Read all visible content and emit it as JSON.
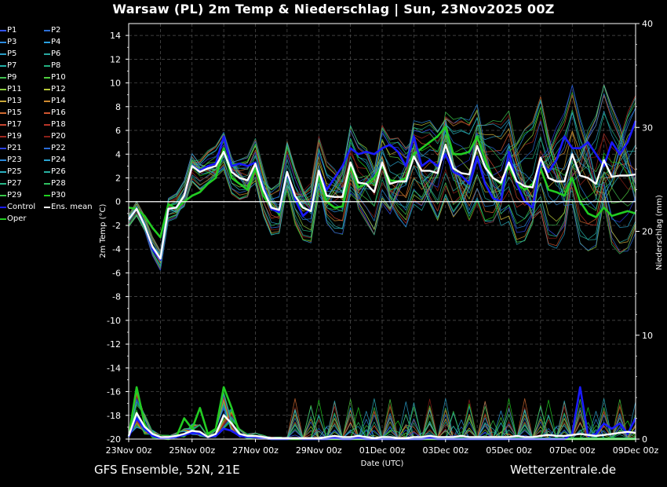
{
  "title": "Warsaw  (PL)  2m Temp & Niederschlag | Sun, 23Nov2025 00Z",
  "footer": {
    "left": "GFS Ensemble, 52N, 21E",
    "right": "Wetterzentrale.de"
  },
  "legend": [
    {
      "label": "P1",
      "color": "#3355ff"
    },
    {
      "label": "P2",
      "color": "#2d6fd6"
    },
    {
      "label": "P3",
      "color": "#2a8adf"
    },
    {
      "label": "P4",
      "color": "#2aa0e0"
    },
    {
      "label": "P5",
      "color": "#2a9ec8"
    },
    {
      "label": "P6",
      "color": "#2aa8a0"
    },
    {
      "label": "P7",
      "color": "#22b0a8"
    },
    {
      "label": "P8",
      "color": "#22b080"
    },
    {
      "label": "P9",
      "color": "#3fbf4f"
    },
    {
      "label": "P10",
      "color": "#4fcf3f"
    },
    {
      "label": "P11",
      "color": "#8fcf3f"
    },
    {
      "label": "P12",
      "color": "#b8c83a"
    },
    {
      "label": "P13",
      "color": "#c8a838"
    },
    {
      "label": "P14",
      "color": "#d08a30"
    },
    {
      "label": "P15",
      "color": "#d06a30"
    },
    {
      "label": "P16",
      "color": "#d05530"
    },
    {
      "label": "P17",
      "color": "#c84530"
    },
    {
      "label": "P18",
      "color": "#b83528"
    },
    {
      "label": "P19",
      "color": "#a02820"
    },
    {
      "label": "P20",
      "color": "#8a2018"
    },
    {
      "label": "P21",
      "color": "#2a40e0"
    },
    {
      "label": "P22",
      "color": "#2a6cd8"
    },
    {
      "label": "P23",
      "color": "#2a88d8"
    },
    {
      "label": "P24",
      "color": "#2aa4d0"
    },
    {
      "label": "P25",
      "color": "#2ab0c0"
    },
    {
      "label": "P26",
      "color": "#28b0a0"
    },
    {
      "label": "P27",
      "color": "#28b888"
    },
    {
      "label": "P28",
      "color": "#30c060"
    },
    {
      "label": "P29",
      "color": "#38c848"
    },
    {
      "label": "P30",
      "color": "#20d020"
    },
    {
      "label": "Control",
      "color": "#1a1aff"
    },
    {
      "label": "Ens. mean",
      "color": "#ffffff"
    },
    {
      "label": "Oper",
      "color": "#22cc22"
    }
  ],
  "chart_data": {
    "type": "line",
    "ylabel": "2m Temp (°C)",
    "y2label": "Niederschlag (mm)",
    "xlabel": "Date (UTC)",
    "ylim": [
      -20,
      15
    ],
    "y2lim": [
      0,
      40
    ],
    "xlim_hours": [
      0,
      384
    ],
    "grid": true,
    "yticks": [
      "14",
      "12",
      "10",
      "8",
      "6",
      "4",
      "2",
      "0",
      "-2",
      "-4",
      "-6",
      "-8",
      "-10",
      "-12",
      "-14",
      "-16",
      "-18",
      "-20"
    ],
    "y2ticks": [
      "40",
      "30",
      "20",
      "10",
      "0"
    ],
    "xticks": [
      "23Nov 00z",
      "25Nov 00z",
      "27Nov 00z",
      "29Nov 00z",
      "01Dec 00z",
      "03Dec 00z",
      "05Dec 00z",
      "07Dec 00z",
      "09Dec 00z"
    ],
    "x_hours": [
      0,
      6,
      12,
      18,
      24,
      30,
      36,
      42,
      48,
      54,
      60,
      66,
      72,
      78,
      84,
      90,
      96,
      102,
      108,
      114,
      120,
      126,
      132,
      138,
      144,
      150,
      156,
      162,
      168,
      174,
      180,
      186,
      192,
      198,
      204,
      210,
      216,
      222,
      228,
      234,
      240,
      246,
      252,
      258,
      264,
      270,
      276,
      282,
      288,
      294,
      300,
      306,
      312,
      318,
      324,
      330,
      336,
      342,
      348,
      354,
      360,
      366,
      372,
      378,
      384
    ],
    "series": [
      {
        "name": "Ens. mean",
        "color": "#ffffff",
        "width": 2.4,
        "temp": [
          -1.5,
          -0.6,
          -2.0,
          -3.8,
          -4.8,
          -0.6,
          -0.5,
          0.5,
          3.0,
          2.5,
          2.8,
          3.0,
          4.2,
          2.5,
          2.0,
          1.8,
          3.2,
          1.0,
          -0.5,
          -0.7,
          2.5,
          0.5,
          -0.5,
          -0.8,
          2.6,
          0.5,
          0.4,
          0.4,
          3.3,
          1.6,
          1.5,
          0.8,
          3.3,
          1.5,
          1.7,
          1.7,
          3.8,
          2.6,
          2.6,
          2.4,
          4.8,
          2.8,
          2.4,
          2.3,
          4.7,
          2.9,
          2.0,
          1.6,
          3.3,
          1.7,
          1.3,
          1.2,
          3.7,
          2.0,
          1.7,
          1.7,
          4.0,
          2.2,
          2.0,
          1.5,
          3.5,
          2.1,
          2.2,
          2.2,
          2.3
        ],
        "precip": [
          0.3,
          2.5,
          1.2,
          0.5,
          0.2,
          0.2,
          0.3,
          0.5,
          0.8,
          0.7,
          0.2,
          0.5,
          2.3,
          1.5,
          0.5,
          0.3,
          0.3,
          0.2,
          0.1,
          0.1,
          0.1,
          0.1,
          0.1,
          0.1,
          0.1,
          0.2,
          0.3,
          0.2,
          0.2,
          0.3,
          0.2,
          0.1,
          0.2,
          0.2,
          0.1,
          0.1,
          0.2,
          0.2,
          0.3,
          0.2,
          0.2,
          0.2,
          0.3,
          0.2,
          0.2,
          0.2,
          0.2,
          0.2,
          0.2,
          0.3,
          0.2,
          0.2,
          0.3,
          0.4,
          0.3,
          0.3,
          0.4,
          0.5,
          0.4,
          0.3,
          0.4,
          0.5,
          0.6,
          0.7,
          0.6
        ]
      },
      {
        "name": "Control",
        "color": "#1a1aff",
        "width": 2.6,
        "temp": [
          -1.5,
          -0.6,
          -2.0,
          -4.0,
          -4.9,
          -0.6,
          -0.5,
          0.5,
          3.0,
          2.6,
          3.0,
          3.2,
          5.5,
          3.0,
          3.2,
          3.0,
          3.3,
          1.2,
          -0.6,
          -0.9,
          2.4,
          0.2,
          -1.2,
          -0.6,
          2.6,
          1.0,
          2.0,
          3.0,
          4.5,
          4.0,
          4.2,
          4.0,
          4.5,
          4.8,
          4.2,
          3.0,
          5.5,
          3.0,
          3.5,
          3.0,
          4.0,
          2.5,
          2.2,
          1.5,
          3.8,
          1.5,
          0.3,
          0.0,
          4.2,
          1.5,
          0.0,
          -0.5,
          3.5,
          2.5,
          3.5,
          5.5,
          4.5,
          4.5,
          5.0,
          4.0,
          3.0,
          5.0,
          4.0,
          5.0,
          6.8
        ],
        "precip": [
          0.2,
          2.0,
          1.0,
          0.3,
          0.1,
          0.1,
          0.2,
          0.4,
          0.6,
          0.5,
          0.2,
          0.3,
          1.0,
          0.8,
          0.3,
          0.2,
          0.2,
          0.1,
          0.0,
          0.0,
          0.0,
          0.1,
          0.0,
          0.0,
          0.0,
          0.0,
          0.1,
          0.0,
          0.0,
          0.1,
          0.0,
          0.0,
          0.0,
          0.0,
          0.0,
          0.0,
          0.0,
          0.0,
          0.1,
          0.0,
          0.0,
          0.0,
          0.0,
          0.0,
          0.0,
          0.0,
          0.0,
          0.0,
          0.0,
          0.0,
          0.0,
          0.0,
          0.0,
          0.0,
          0.0,
          0.0,
          0.5,
          5.0,
          0.3,
          0.5,
          1.5,
          1.0,
          1.5,
          0.5,
          2.0
        ]
      },
      {
        "name": "Oper",
        "color": "#22cc22",
        "width": 2.6,
        "temp": [
          -0.5,
          -0.6,
          -1.2,
          -2.2,
          -3.0,
          -0.2,
          -0.6,
          0.0,
          0.5,
          0.8,
          1.5,
          2.0,
          4.5,
          2.0,
          1.5,
          1.0,
          2.8,
          0.5,
          -0.5,
          -1.0,
          2.2,
          0.0,
          -0.5,
          -0.8,
          2.2,
          0.0,
          -0.5,
          -0.4,
          3.0,
          1.2,
          1.5,
          2.0,
          3.0,
          1.8,
          1.7,
          2.0,
          4.0,
          4.5,
          5.0,
          5.5,
          6.3,
          4.0,
          4.0,
          4.2,
          5.5,
          3.5,
          2.0,
          1.5,
          3.0,
          1.5,
          1.0,
          1.5,
          2.8,
          1.0,
          0.8,
          0.5,
          2.0,
          0.0,
          -1.0,
          -1.3,
          -0.5,
          -1.2,
          -1.0,
          -0.8,
          -1.0
        ],
        "precip": [
          0.2,
          5.0,
          1.5,
          0.2,
          0.1,
          0.0,
          0.2,
          2.0,
          1.0,
          3.0,
          0.5,
          1.0,
          5.0,
          3.0,
          0.5,
          0.1,
          0.2,
          0.1,
          0.0,
          0.0,
          0.0,
          0.0,
          0.0,
          0.0,
          0.0,
          0.0,
          0.0,
          0.0,
          0.0,
          0.0,
          0.0,
          0.0,
          0.0,
          0.0,
          0.0,
          0.0,
          0.0,
          0.0,
          0.0,
          0.0,
          0.0,
          0.0,
          0.0,
          0.0,
          0.0,
          0.0,
          0.0,
          0.0,
          0.0,
          0.0,
          0.0,
          0.0,
          0.0,
          0.0,
          0.0,
          0.0,
          0.0,
          0.0,
          0.0,
          0.0,
          0.0,
          0.0,
          0.0,
          0.0,
          0.0
        ]
      }
    ]
  }
}
